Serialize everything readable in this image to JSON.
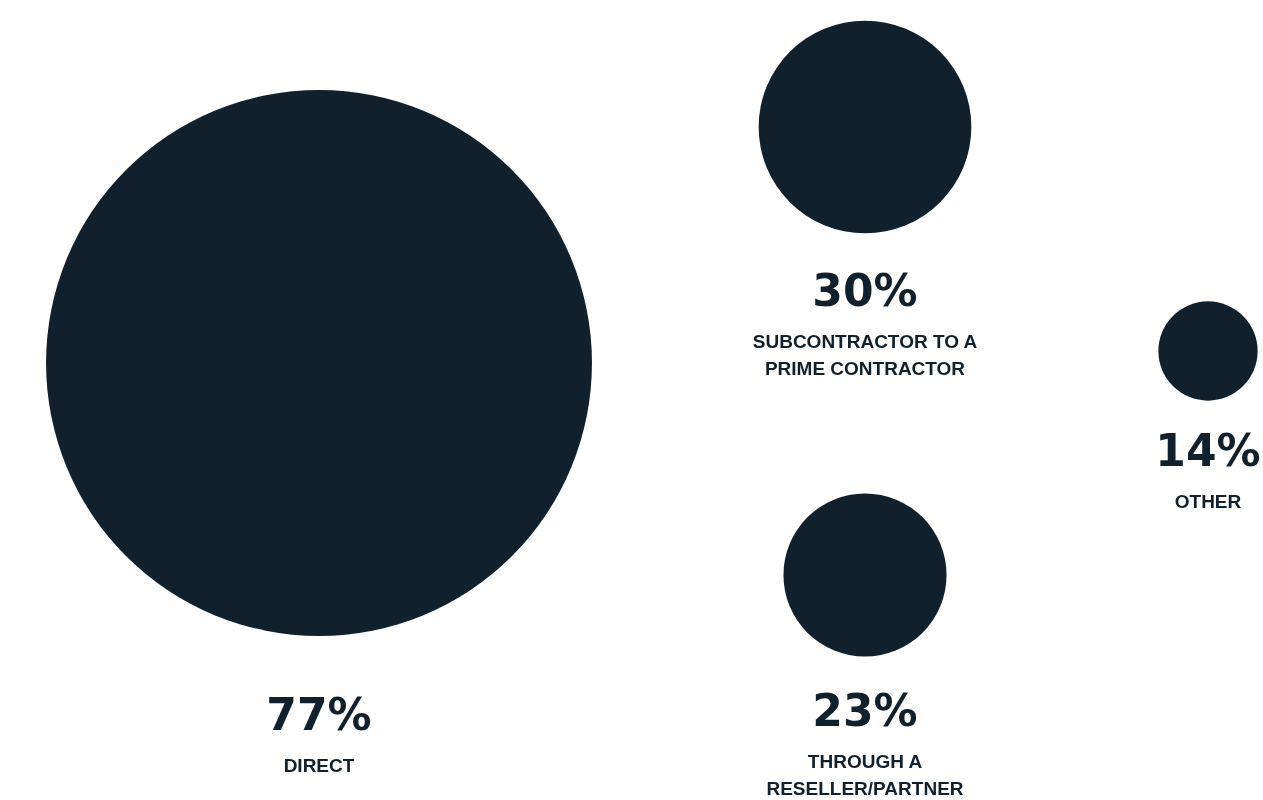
{
  "chart_data": {
    "type": "other",
    "categories": [
      "DIRECT",
      "SUBCONTRACTOR TO A\nPRIME CONTRACTOR",
      "THROUGH A\nRESELLER/PARTNER",
      "OTHER"
    ],
    "values": [
      77,
      30,
      23,
      14
    ],
    "value_labels": [
      "77%",
      "30%",
      "23%",
      "14%"
    ],
    "color": "#11202d"
  }
}
